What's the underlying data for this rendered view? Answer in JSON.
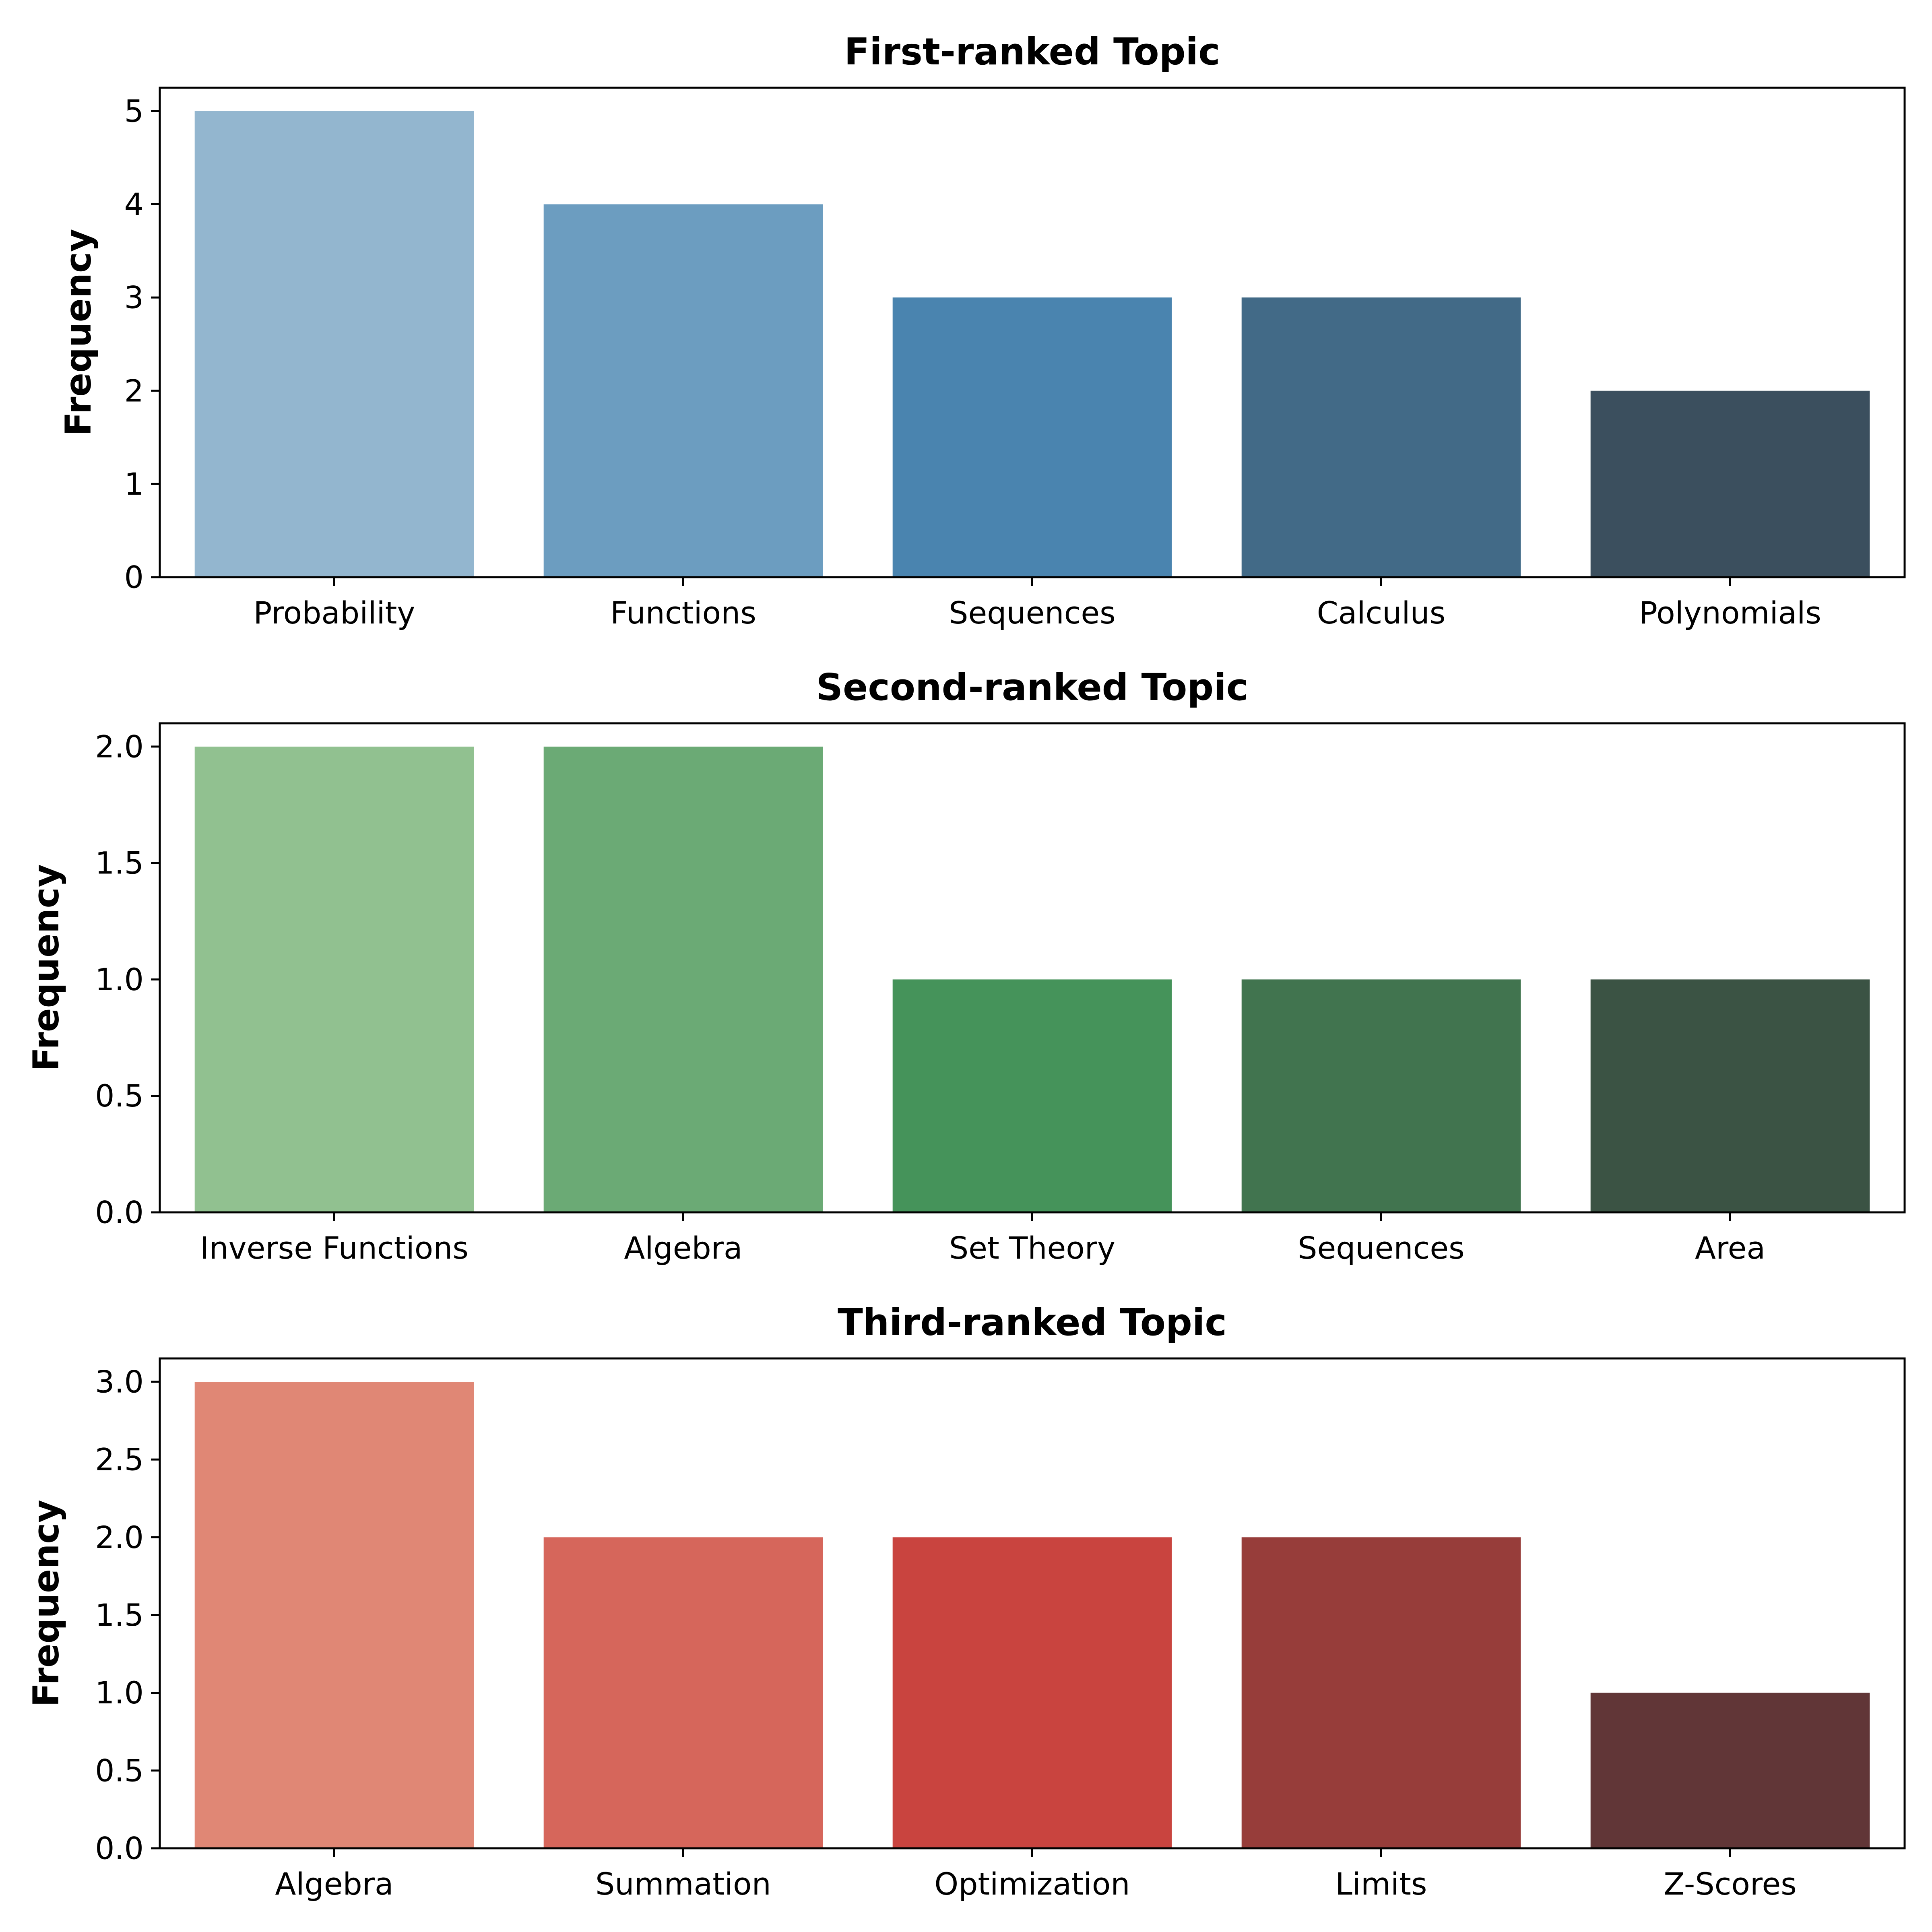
{
  "chart_data": [
    {
      "type": "bar",
      "title": "First-ranked Topic",
      "xlabel": "",
      "ylabel": "Frequency",
      "categories": [
        "Probability",
        "Functions",
        "Sequences",
        "Calculus",
        "Polynomials"
      ],
      "values": [
        5,
        4,
        3,
        3,
        2
      ],
      "ylim": [
        0,
        5.25
      ],
      "yticks": [
        0,
        1,
        2,
        3,
        4,
        5
      ],
      "ytick_labels": [
        "0",
        "1",
        "2",
        "3",
        "4",
        "5"
      ],
      "colors": [
        "#93b6cf",
        "#6c9dc0",
        "#4a84af",
        "#426a87",
        "#3b4f5e"
      ],
      "grid": false
    },
    {
      "type": "bar",
      "title": "Second-ranked Topic",
      "xlabel": "",
      "ylabel": "Frequency",
      "categories": [
        "Inverse Functions",
        "Algebra",
        "Set Theory",
        "Sequences",
        "Area"
      ],
      "values": [
        2,
        2,
        1,
        1,
        1
      ],
      "ylim": [
        0,
        2.1
      ],
      "yticks": [
        0,
        0.5,
        1.0,
        1.5,
        2.0
      ],
      "ytick_labels": [
        "0.0",
        "0.5",
        "1.0",
        "1.5",
        "2.0"
      ],
      "colors": [
        "#91c190",
        "#6baa75",
        "#45935a",
        "#41744f",
        "#3b5344"
      ],
      "grid": false
    },
    {
      "type": "bar",
      "title": "Third-ranked Topic",
      "xlabel": "",
      "ylabel": "Frequency",
      "categories": [
        "Algebra",
        "Summation",
        "Optimization",
        "Limits",
        "Z-Scores"
      ],
      "values": [
        3,
        2,
        2,
        2,
        1
      ],
      "ylim": [
        0,
        3.15
      ],
      "yticks": [
        0,
        0.5,
        1.0,
        1.5,
        2.0,
        2.5,
        3.0
      ],
      "ytick_labels": [
        "0.0",
        "0.5",
        "1.0",
        "1.5",
        "2.0",
        "2.5",
        "3.0"
      ],
      "colors": [
        "#e08775",
        "#d6665b",
        "#c9443f",
        "#973d3a",
        "#613637"
      ],
      "grid": false
    }
  ]
}
